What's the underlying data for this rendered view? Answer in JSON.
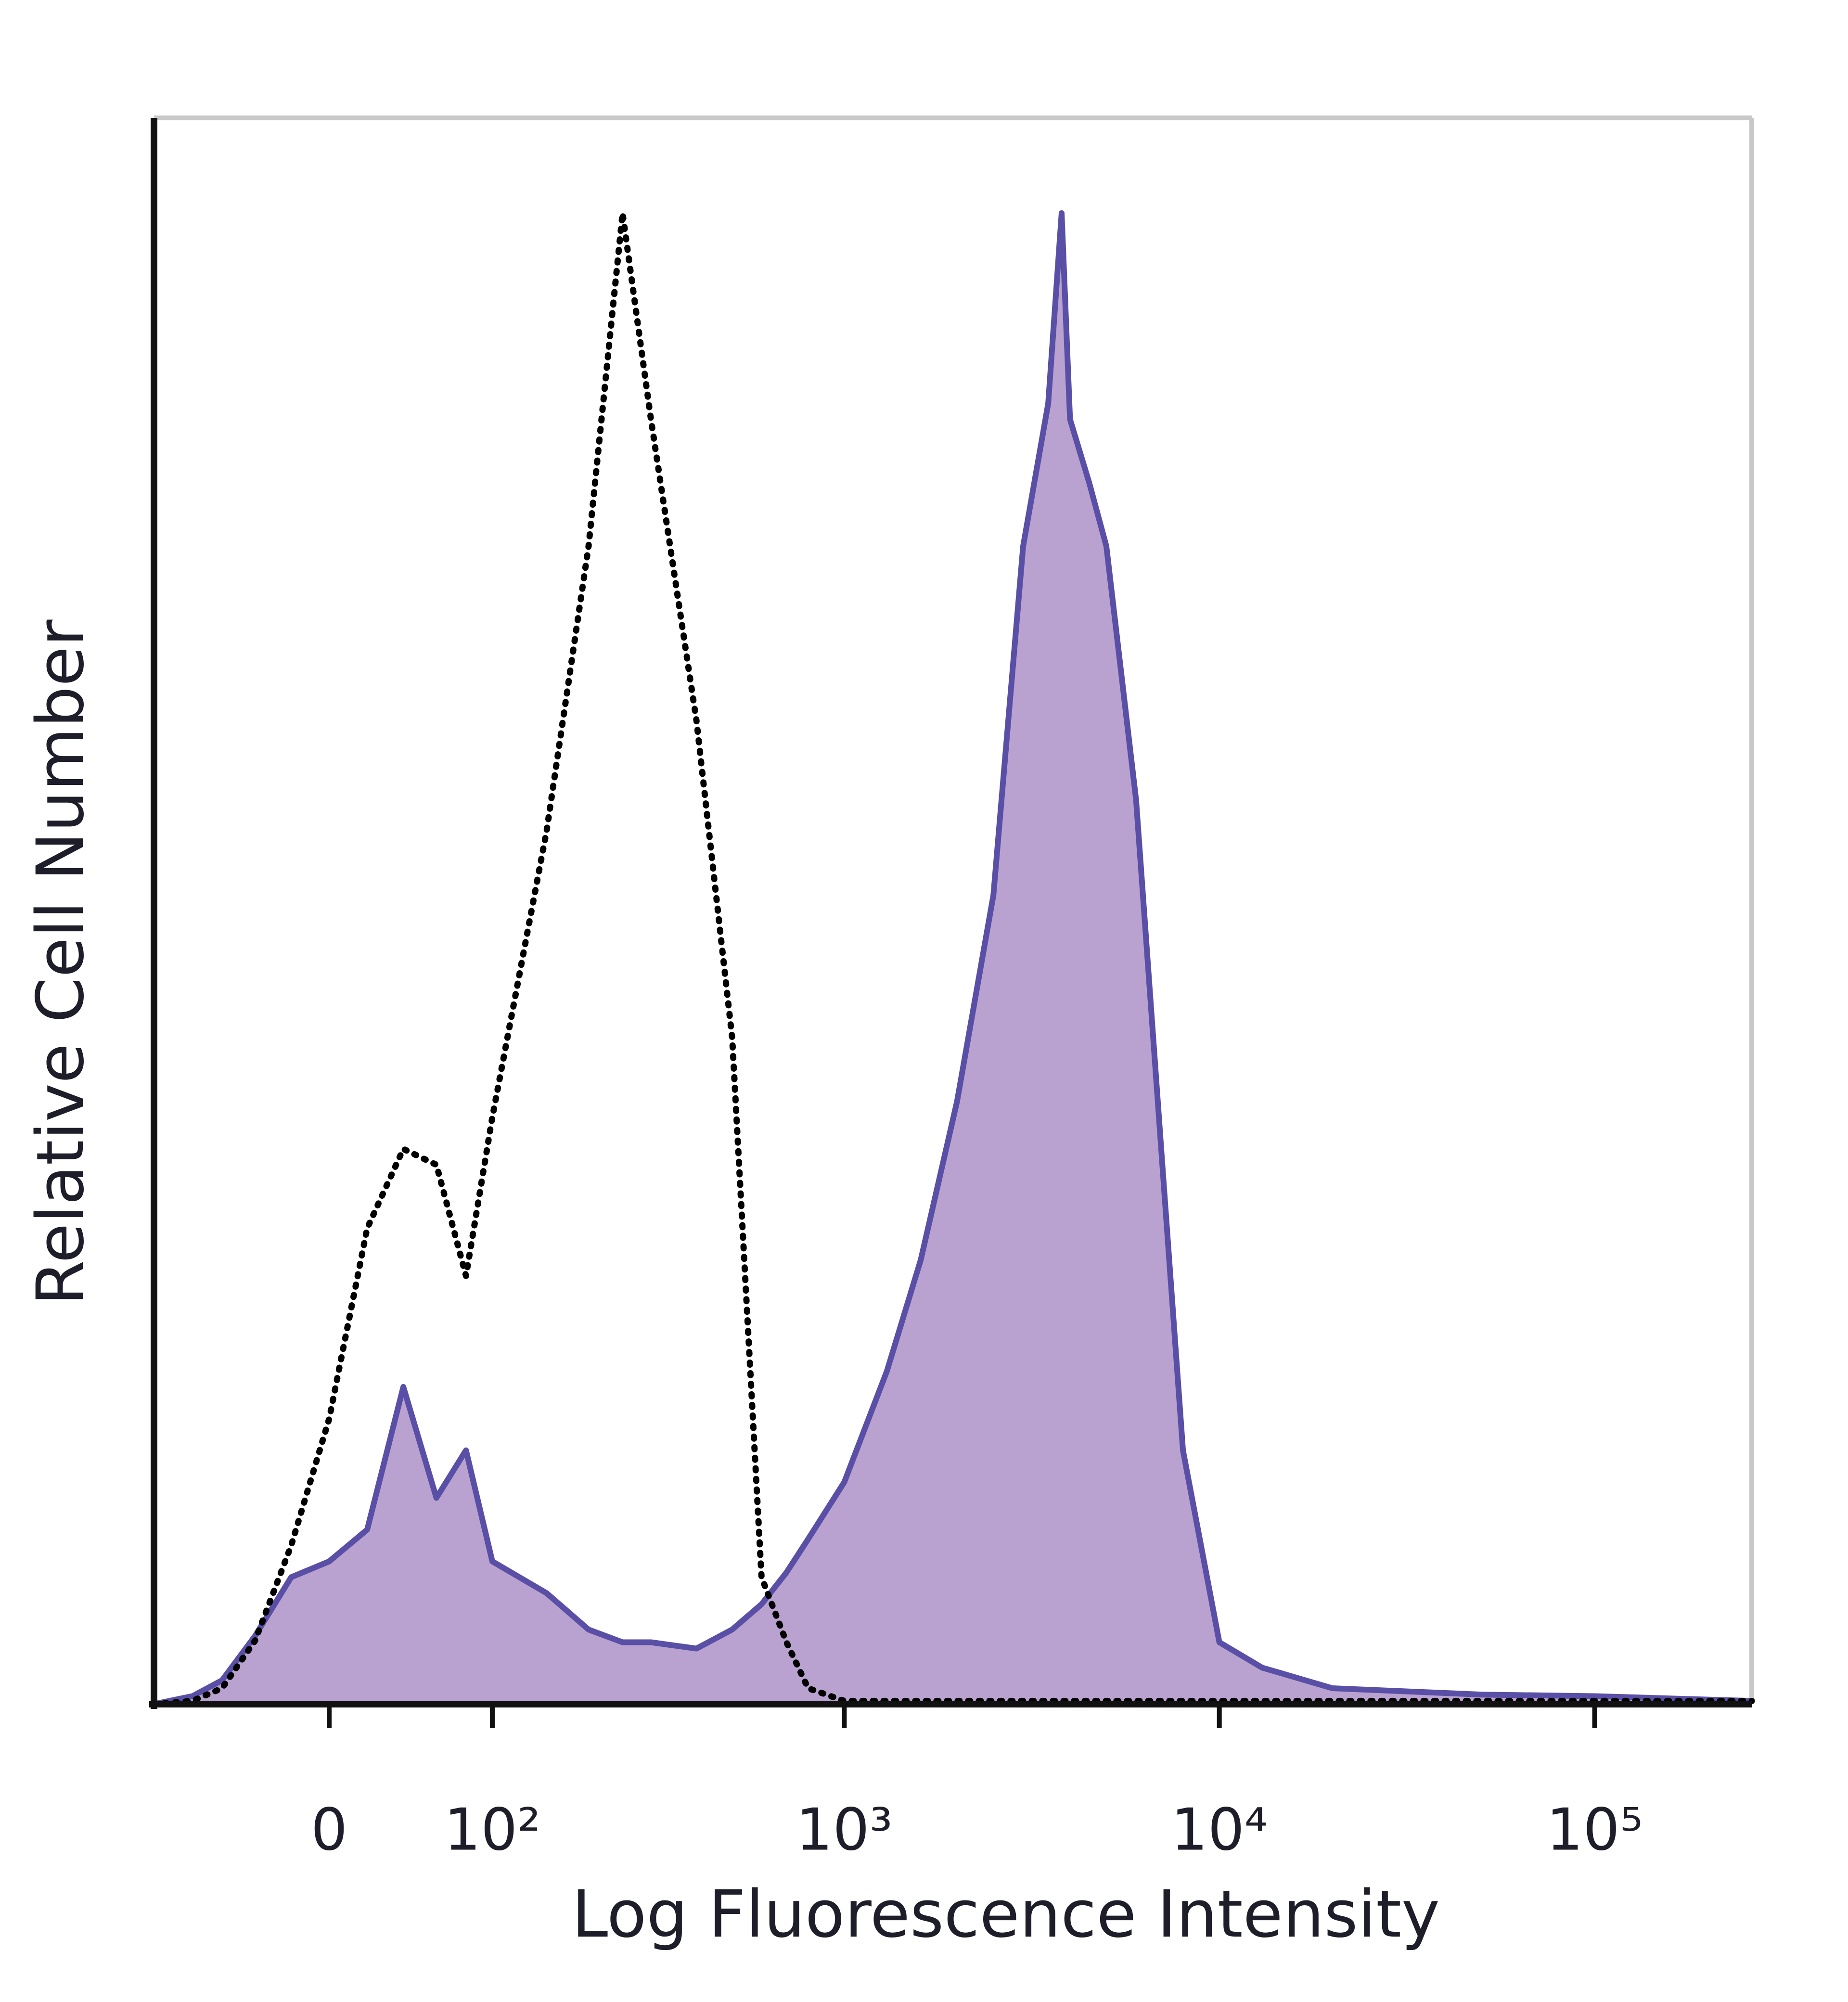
{
  "chart_data": {
    "type": "area",
    "x_label": "Log Fluorescence Intensity",
    "y_label": "Relative Cell Number",
    "xscale": "asinh",
    "xlim": [
      -110,
      262144
    ],
    "xticks": [
      0,
      {
        "value": 100,
        "label": "10²"
      },
      {
        "value": 1000,
        "label": "10³"
      },
      {
        "value": 10000,
        "label": "10⁴"
      },
      {
        "value": 100000,
        "label": "10⁵"
      }
    ],
    "ylim": [
      0,
      100
    ],
    "x": [
      -110,
      -80,
      -60,
      -40,
      -20,
      0,
      20,
      40,
      60,
      80,
      100,
      150,
      200,
      250,
      300,
      400,
      500,
      600,
      700,
      800,
      1000,
      1300,
      1600,
      2000,
      2500,
      3000,
      3500,
      3800,
      4000,
      4500,
      5000,
      6000,
      7000,
      8000,
      10000,
      13000,
      20000,
      50000,
      100000,
      262144
    ],
    "series": [
      {
        "color": "#5a4fa6",
        "fill": "#b9a2cf",
        "style": "solid",
        "values": [
          0,
          0.5,
          1.5,
          4.3,
          8,
          9,
          11,
          20,
          13,
          16,
          9,
          7,
          4.7,
          3.9,
          3.9,
          3.5,
          4.7,
          6.3,
          8.3,
          10.4,
          14,
          21,
          28,
          38,
          51,
          73,
          82,
          94,
          81,
          77,
          73,
          57,
          35,
          16,
          3.9,
          2.3,
          1,
          0.6,
          0.5,
          0.2
        ]
      },
      {
        "color": "#000000",
        "style": "dotted",
        "values": [
          0,
          0.2,
          1,
          4,
          10,
          18,
          30,
          35,
          34,
          27,
          37,
          55,
          73,
          94,
          81,
          62,
          42,
          8,
          3.9,
          1,
          0.2,
          0.2,
          0.2,
          0.2,
          0.2,
          0.2,
          0.2,
          0.2,
          0.2,
          0.2,
          0.2,
          0.2,
          0.2,
          0.2,
          0.2,
          0.2,
          0.2,
          0.2,
          0.2,
          0.2
        ]
      }
    ]
  }
}
